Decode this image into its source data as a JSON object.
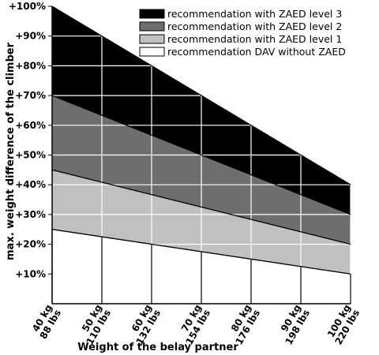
{
  "chart_data": {
    "type": "area",
    "title": "",
    "xlabel": "Weight of the belay partner",
    "ylabel": "max. weight difference of the climber",
    "x_tick_labels": [
      {
        "kg": "40 kg",
        "lbs": "88 lbs"
      },
      {
        "kg": "50 kg",
        "lbs": "110 lbs"
      },
      {
        "kg": "60 kg",
        "lbs": "132 lbs"
      },
      {
        "kg": "70 kg",
        "lbs": "154 lbs"
      },
      {
        "kg": "80 kg",
        "lbs": "176 lbs"
      },
      {
        "kg": "90 kg",
        "lbs": "198 lbs"
      },
      {
        "kg": "100 kg",
        "lbs": "220 lbs"
      }
    ],
    "x": [
      40,
      50,
      60,
      70,
      80,
      90,
      100
    ],
    "xlim": [
      40,
      100
    ],
    "y_tick_labels": [
      "+10%",
      "+20%",
      "+30%",
      "+40%",
      "+50%",
      "+60%",
      "+70%",
      "+80%",
      "+90%",
      "+100%"
    ],
    "y_ticks": [
      10,
      20,
      30,
      40,
      50,
      60,
      70,
      80,
      90,
      100
    ],
    "ylim": [
      0,
      100
    ],
    "grid": true,
    "legend_position": "top-right",
    "series": [
      {
        "name": "recommendation with ZAED level 3",
        "color": "#000000",
        "x": [
          40,
          100
        ],
        "values": [
          100,
          40
        ]
      },
      {
        "name": "recommendation with ZAED level 2",
        "color": "#6e6e6e",
        "x": [
          40,
          100
        ],
        "values": [
          70,
          30
        ]
      },
      {
        "name": "recommendation with ZAED level 1",
        "color": "#c0c0c0",
        "x": [
          40,
          100
        ],
        "values": [
          45,
          20
        ]
      },
      {
        "name": "recommendation DAV without ZAED",
        "color": "#ffffff",
        "x": [
          40,
          100
        ],
        "values": [
          25,
          10
        ]
      }
    ]
  }
}
